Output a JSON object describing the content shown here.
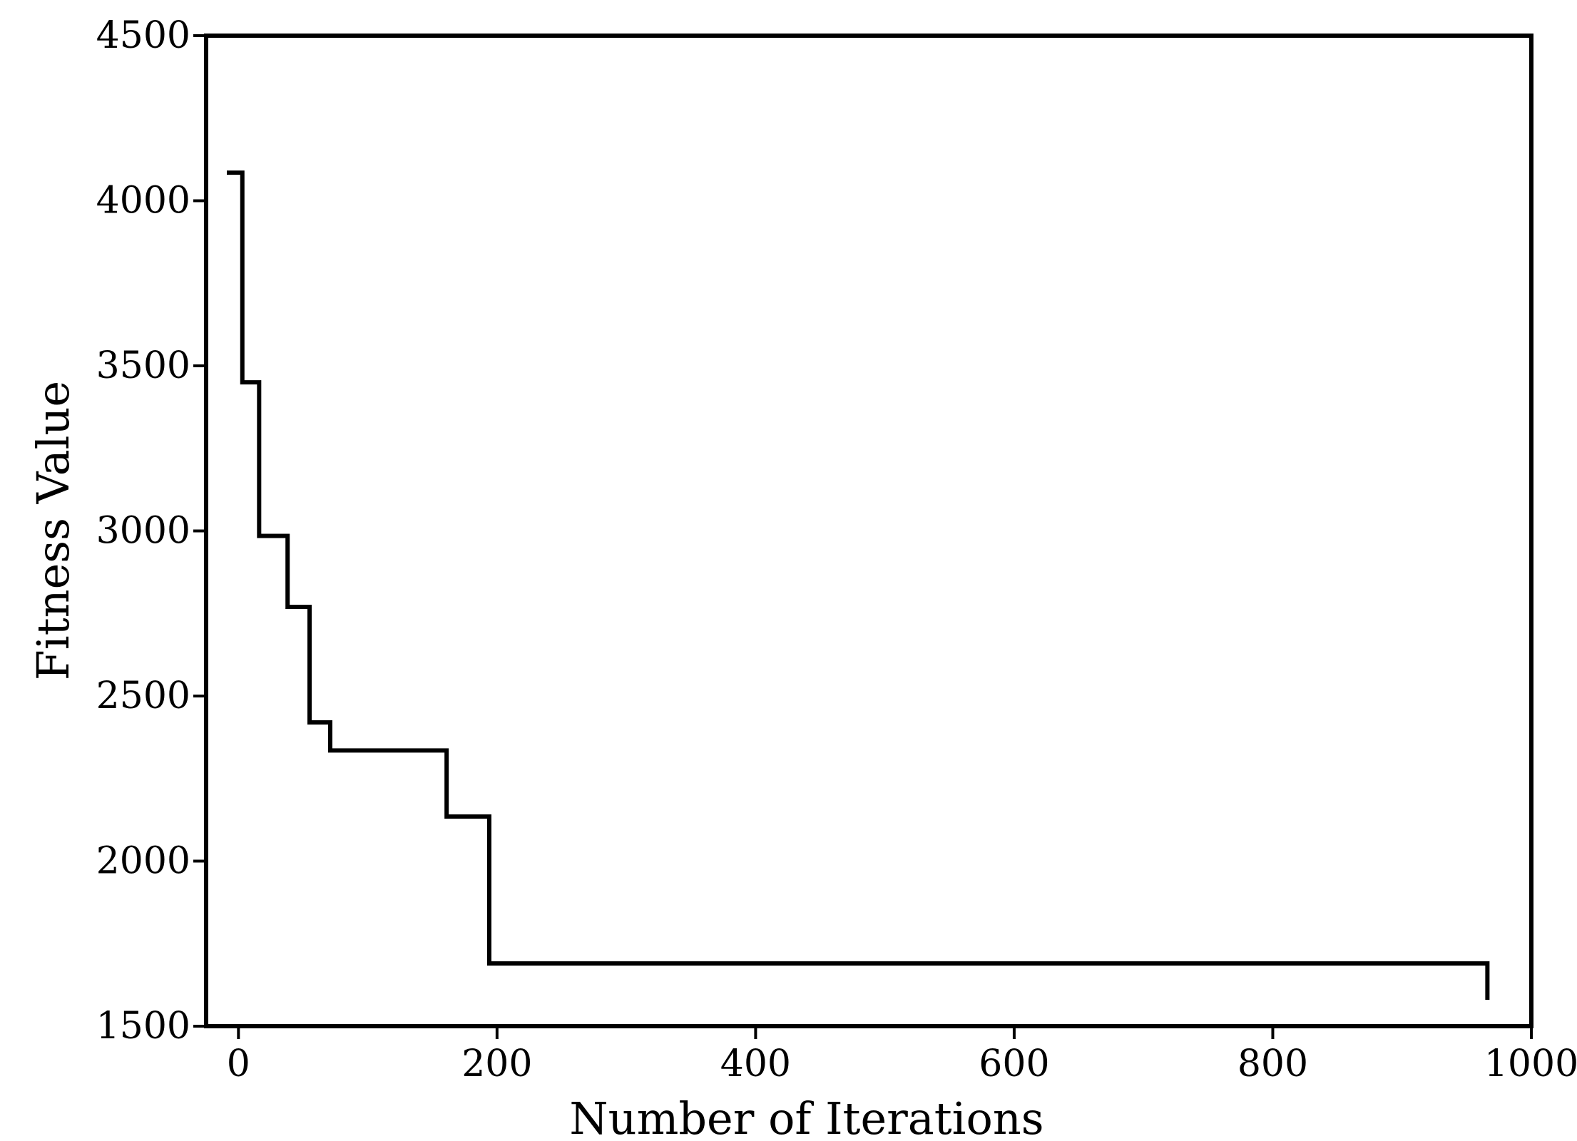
{
  "chart_data": {
    "type": "line",
    "title": "",
    "xlabel": "Number of Iterations",
    "ylabel": "Fitness Value",
    "xlim": [
      -25,
      1000
    ],
    "ylim": [
      1500,
      4500
    ],
    "xticks": [
      0,
      200,
      400,
      600,
      800,
      1000
    ],
    "yticks": [
      1500,
      2000,
      2500,
      3000,
      3500,
      4000,
      4500
    ],
    "grid": false,
    "line_color": "#000000",
    "series": [
      {
        "step": true,
        "x": [
          -9,
          3,
          16,
          38,
          55,
          71,
          161,
          194,
          966
        ],
        "y": [
          4085,
          3450,
          2985,
          2770,
          2420,
          2335,
          2135,
          1690,
          1580
        ]
      }
    ]
  }
}
